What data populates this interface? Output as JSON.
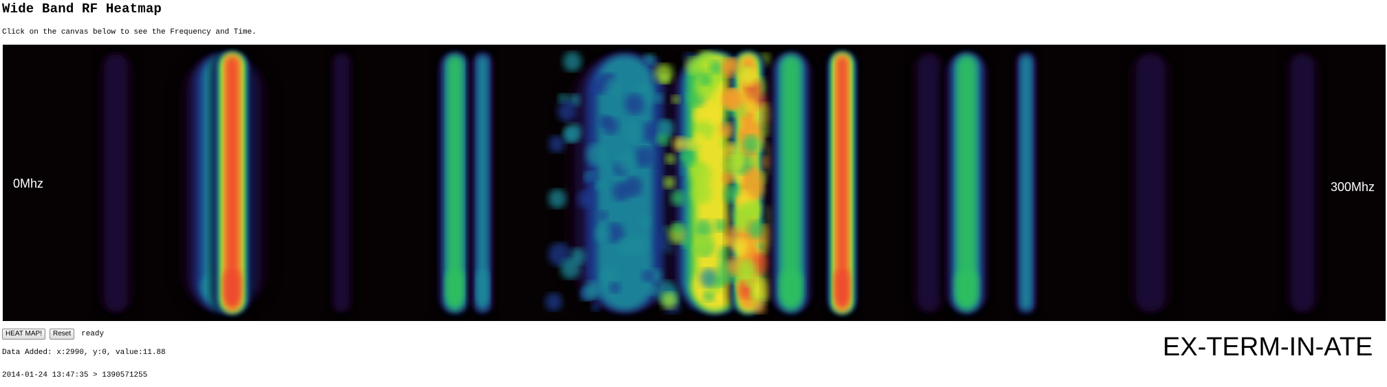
{
  "page": {
    "title": "Wide Band RF Heatmap",
    "instructions": "Click on the canvas below to see the Frequency and Time."
  },
  "heatmap": {
    "freq_min_label": "0Mhz",
    "freq_max_label": "300Mhz",
    "background_color": "#060203",
    "gradient": [
      "#0a0010",
      "#1a0a3a",
      "#1f3a8f",
      "#1a8a9a",
      "#2fbf5f",
      "#9fdf2f",
      "#f3e12a",
      "#f39a2a",
      "#ee4a2f"
    ],
    "bands": [
      {
        "center": 0.082,
        "width": 0.012,
        "intensity": 0.08
      },
      {
        "center": 0.16,
        "width": 0.03,
        "intensity": 0.42,
        "style": "solid"
      },
      {
        "center": 0.166,
        "width": 0.012,
        "intensity": 0.95,
        "style": "solid"
      },
      {
        "center": 0.245,
        "width": 0.008,
        "intensity": 0.12
      },
      {
        "center": 0.327,
        "width": 0.012,
        "intensity": 0.48
      },
      {
        "center": 0.347,
        "width": 0.008,
        "intensity": 0.42
      },
      {
        "center": 0.45,
        "width": 0.04,
        "intensity": 0.38,
        "style": "speckled"
      },
      {
        "center": 0.515,
        "width": 0.03,
        "intensity": 0.7,
        "style": "speckled"
      },
      {
        "center": 0.539,
        "width": 0.012,
        "intensity": 0.85,
        "style": "speckled"
      },
      {
        "center": 0.57,
        "width": 0.015,
        "intensity": 0.5
      },
      {
        "center": 0.607,
        "width": 0.01,
        "intensity": 0.95,
        "style": "solid"
      },
      {
        "center": 0.67,
        "width": 0.012,
        "intensity": 0.15
      },
      {
        "center": 0.697,
        "width": 0.015,
        "intensity": 0.5
      },
      {
        "center": 0.74,
        "width": 0.008,
        "intensity": 0.35
      },
      {
        "center": 0.83,
        "width": 0.015,
        "intensity": 0.12
      },
      {
        "center": 0.94,
        "width": 0.012,
        "intensity": 0.08
      }
    ]
  },
  "controls": {
    "heat_map_label": "HEAT MAP!",
    "reset_label": "Reset",
    "status": "ready"
  },
  "info": {
    "data_added": "Data Added: x:2990, y:0, value:11.88",
    "timestamp": "2014-01-24 13:47:35 > 1390571255"
  },
  "brand": "EX-TERM-IN-ATE"
}
